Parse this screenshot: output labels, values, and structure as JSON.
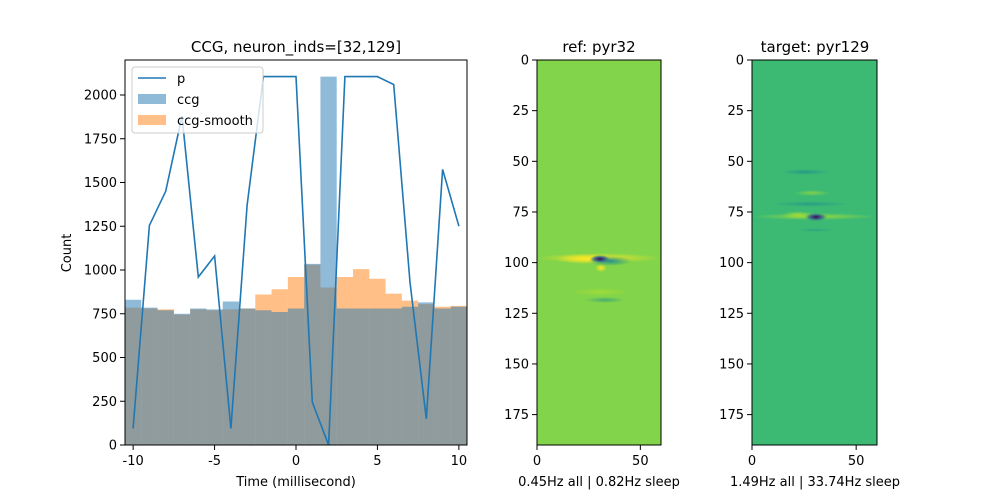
{
  "colors": {
    "line_p": "#1f77b4",
    "bar_ccg": "#1f77b4",
    "bar_ccg_smooth": "#ff7f0e",
    "ref_background": "#82d44a",
    "target_background": "#3cba74",
    "viridis_dark": "#440154",
    "viridis_blue": "#31688e",
    "viridis_yellow": "#fde725"
  },
  "chart_data": [
    {
      "type": "bar",
      "title": "CCG, neuron_inds=[32,129]",
      "xlabel": "Time (millisecond)",
      "ylabel": "Count",
      "xlim": [
        -10.5,
        10.5
      ],
      "ylim": [
        0,
        2200
      ],
      "x_ticks": [
        -10,
        -5,
        0,
        5,
        10
      ],
      "y_ticks": [
        0,
        250,
        500,
        750,
        1000,
        1250,
        1500,
        1750,
        2000
      ],
      "legend": [
        "p",
        "ccg",
        "ccg-smooth"
      ],
      "legend_position": "top-left",
      "grid": false,
      "x": [
        -10,
        -9,
        -8,
        -7,
        -6,
        -5,
        -4,
        -3,
        -2,
        -1,
        0,
        1,
        2,
        3,
        4,
        5,
        6,
        7,
        8,
        9,
        10
      ],
      "series": [
        {
          "name": "p",
          "kind": "line",
          "values": [
            95,
            1255,
            1450,
            1880,
            960,
            1080,
            95,
            1370,
            2105,
            2105,
            2105,
            245,
            0,
            2105,
            2105,
            2105,
            2060,
            930,
            150,
            1575,
            1250
          ]
        },
        {
          "name": "ccg",
          "kind": "bar",
          "values": [
            830,
            785,
            770,
            750,
            780,
            775,
            820,
            780,
            770,
            760,
            780,
            1035,
            2105,
            780,
            780,
            780,
            780,
            790,
            815,
            780,
            790
          ]
        },
        {
          "name": "ccg-smooth",
          "kind": "bar",
          "values": [
            785,
            780,
            775,
            745,
            775,
            770,
            775,
            780,
            860,
            890,
            960,
            1030,
            900,
            960,
            1005,
            950,
            865,
            825,
            805,
            790,
            795
          ]
        }
      ]
    },
    {
      "type": "heatmap",
      "title": "ref: pyr32",
      "xlabel": "0.45Hz all | 0.82Hz sleep",
      "xlim": [
        0,
        60
      ],
      "ylim": [
        190,
        0
      ],
      "x_ticks": [
        0,
        50
      ],
      "y_ticks": [
        0,
        25,
        50,
        75,
        100,
        125,
        150,
        175
      ]
    },
    {
      "type": "heatmap",
      "title": "target: pyr129",
      "xlabel": "1.49Hz all | 33.74Hz sleep",
      "xlim": [
        0,
        60
      ],
      "ylim": [
        190,
        0
      ],
      "x_ticks": [
        0,
        50
      ],
      "y_ticks": [
        0,
        25,
        50,
        75,
        100,
        125,
        150,
        175
      ]
    }
  ]
}
